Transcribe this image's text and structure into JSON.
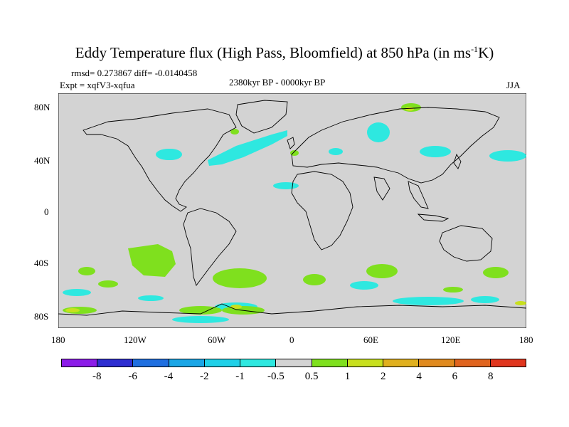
{
  "title": {
    "text": "Eddy Temperature flux (High Pass, Bloomfield) at 850 hPa (in ms",
    "sup": "-1",
    "tail": "K)"
  },
  "stats": {
    "rmsd_diff": "rmsd= 0.273867 diff= -0.0140458",
    "expt": "Expt = xqfV3-xqfua",
    "period": "2380kyr BP - 0000kyr BP",
    "season": "JJA"
  },
  "axes": {
    "y_labels": [
      "80N",
      "40N",
      "0",
      "40S",
      "80S"
    ],
    "x_labels": [
      "180",
      "120W",
      "60W",
      "0",
      "60E",
      "120E",
      "180"
    ]
  },
  "colorbar": {
    "colors": [
      "#8c1ce8",
      "#2e2ed1",
      "#1f6fe0",
      "#1aa6e6",
      "#1fd0e8",
      "#2ee8e0",
      "#d3d3d3",
      "#7fe01e",
      "#c8e01e",
      "#e0b01e",
      "#e08a1e",
      "#e0641e",
      "#e0361e"
    ],
    "labels": [
      "-8",
      "-6",
      "-4",
      "-2",
      "-1",
      "-0.5",
      "0.5",
      "1",
      "2",
      "4",
      "6",
      "8"
    ]
  },
  "map": {
    "background": "#d3d3d3",
    "negative_color": "#2ee8e0",
    "positive_color": "#7fe01e",
    "strong_color": "#c8e01e"
  }
}
